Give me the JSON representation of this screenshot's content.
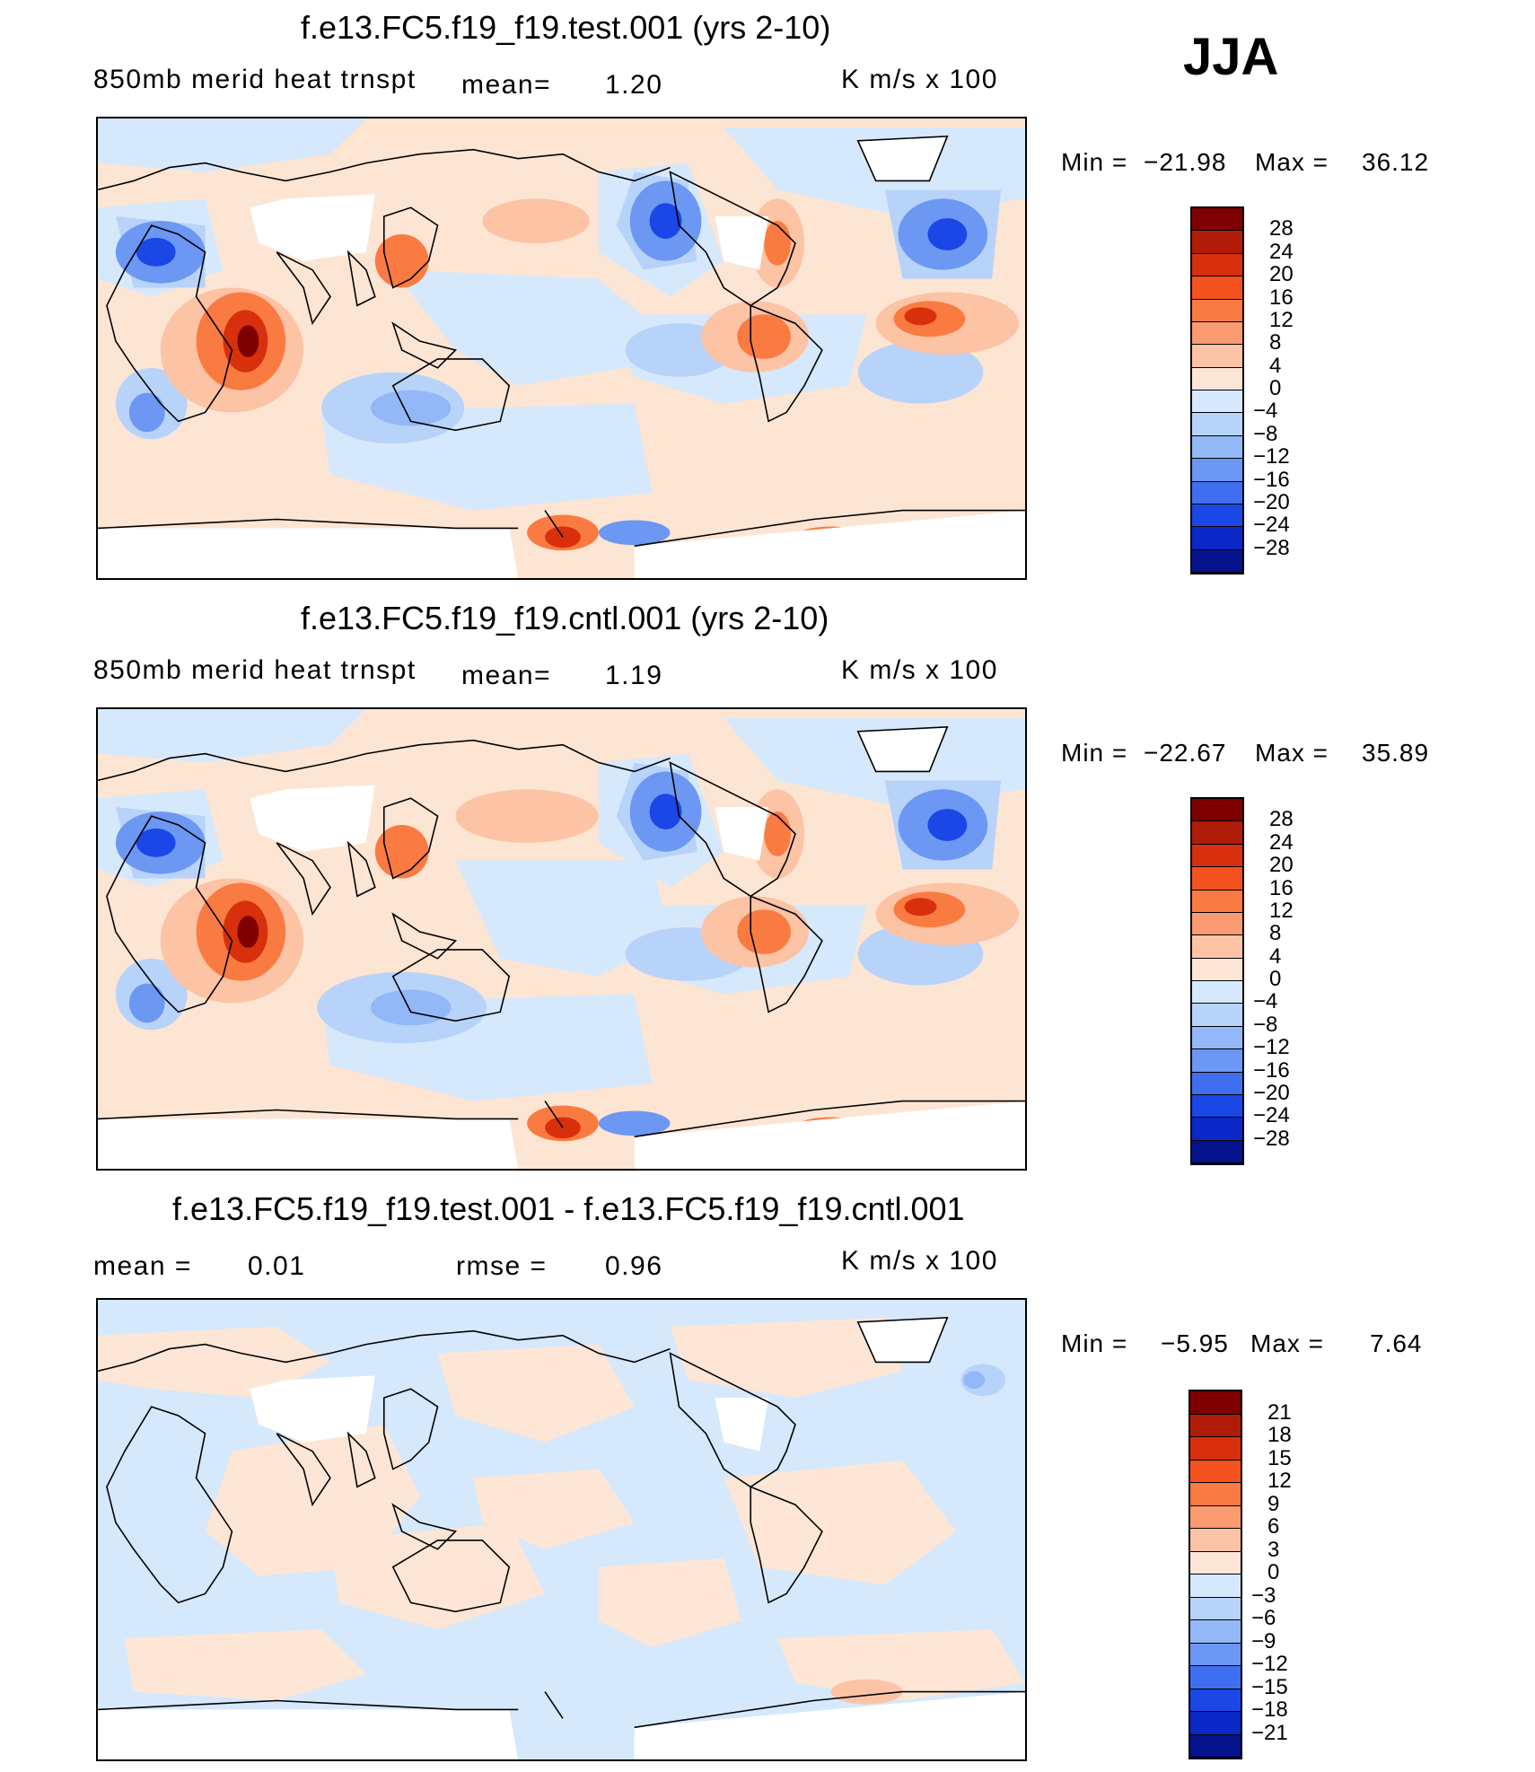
{
  "season": "JJA",
  "panels": [
    {
      "id": "test",
      "title": "f.e13.FC5.f19_f19.test.001 (yrs 2-10)",
      "left_label": "850mb merid heat trnspt",
      "mean_label": "mean=",
      "mean_value": "1.20",
      "units": "K m/s x 100",
      "min_label": "Min =",
      "min_value": "−21.98",
      "max_label": "Max =",
      "max_value": "36.12",
      "colorbar_labels": [
        "28",
        "24",
        "20",
        "16",
        "12",
        "8",
        "4",
        "0",
        "−4",
        "−8",
        "−12",
        "−16",
        "−20",
        "−24",
        "−28"
      ]
    },
    {
      "id": "cntl",
      "title": "f.e13.FC5.f19_f19.cntl.001 (yrs 2-10)",
      "left_label": "850mb merid heat trnspt",
      "mean_label": "mean=",
      "mean_value": "1.19",
      "units": "K m/s x 100",
      "min_label": "Min =",
      "min_value": "−22.67",
      "max_label": "Max =",
      "max_value": "35.89",
      "colorbar_labels": [
        "28",
        "24",
        "20",
        "16",
        "12",
        "8",
        "4",
        "0",
        "−4",
        "−8",
        "−12",
        "−16",
        "−20",
        "−24",
        "−28"
      ]
    },
    {
      "id": "diff",
      "title": "f.e13.FC5.f19_f19.test.001 - f.e13.FC5.f19_f19.cntl.001",
      "mean_label": "mean =",
      "mean_value": "0.01",
      "rmse_label": "rmse =",
      "rmse_value": "0.96",
      "units": "K m/s x 100",
      "min_label": "Min =",
      "min_value": "−5.95",
      "max_label": "Max =",
      "max_value": "7.64",
      "colorbar_labels": [
        "21",
        "18",
        "15",
        "12",
        "9",
        "6",
        "3",
        "0",
        "−3",
        "−6",
        "−9",
        "−12",
        "−15",
        "−18",
        "−21"
      ]
    }
  ],
  "colorbar_colors": [
    "#7f0000",
    "#b01c08",
    "#d8300c",
    "#f4521e",
    "#fa7b42",
    "#fb9b72",
    "#fcc3a5",
    "#fde6d6",
    "#d6e8fb",
    "#b8d3fa",
    "#93b8f7",
    "#6c97f3",
    "#3f6ef0",
    "#1a47e6",
    "#0a28c8",
    "#04128c"
  ],
  "map_colors": {
    "ocean_bg": "#fde5d4",
    "land_line": "#000000",
    "missing": "#ffffff"
  }
}
